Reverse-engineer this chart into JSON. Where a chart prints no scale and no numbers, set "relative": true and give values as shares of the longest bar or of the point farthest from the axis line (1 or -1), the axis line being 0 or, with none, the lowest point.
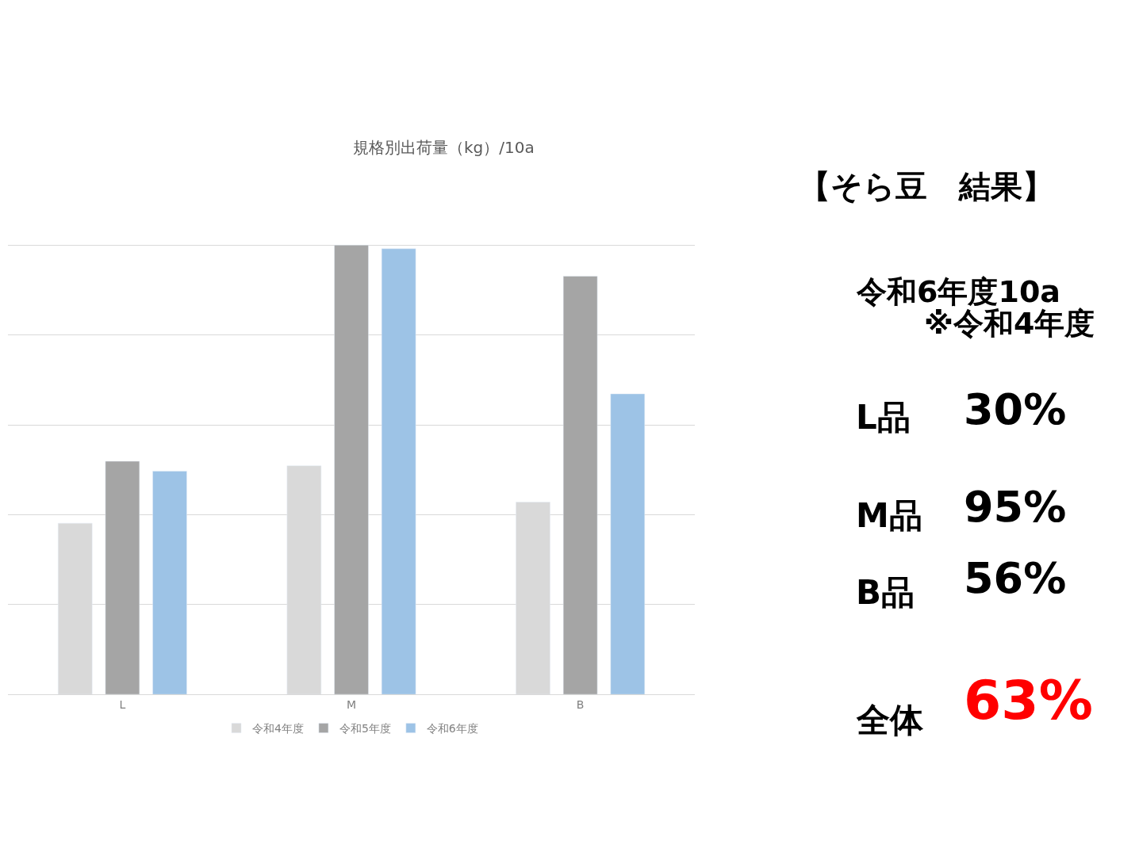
{
  "chart_data": [
    {
      "type": "bar",
      "title": "規格別出荷量（kg）/10a",
      "categories": [
        "L",
        "M",
        "B"
      ],
      "relative": true,
      "grid": "y",
      "legend": "bottom",
      "series": [
        {
          "name": "令和4年度",
          "color": "#d9d9d9",
          "values": [
            0.381,
            0.509,
            0.428
          ]
        },
        {
          "name": "令和5年度",
          "color": "#a5a5a5",
          "values": [
            0.519,
            1,
            0.931
          ]
        },
        {
          "name": "令和6年度",
          "color": "#9dc3e6",
          "values": [
            0.497,
            0.992,
            0.669
          ]
        }
      ]
    },
    {
      "type": "other",
      "title": "【そら豆　結果】",
      "annotations": [
        "令和6年度10a",
        "※令和4年度",
        "L品",
        "30%",
        "M品",
        "95%",
        "B品",
        "56%",
        "全体",
        "63%"
      ]
    }
  ]
}
